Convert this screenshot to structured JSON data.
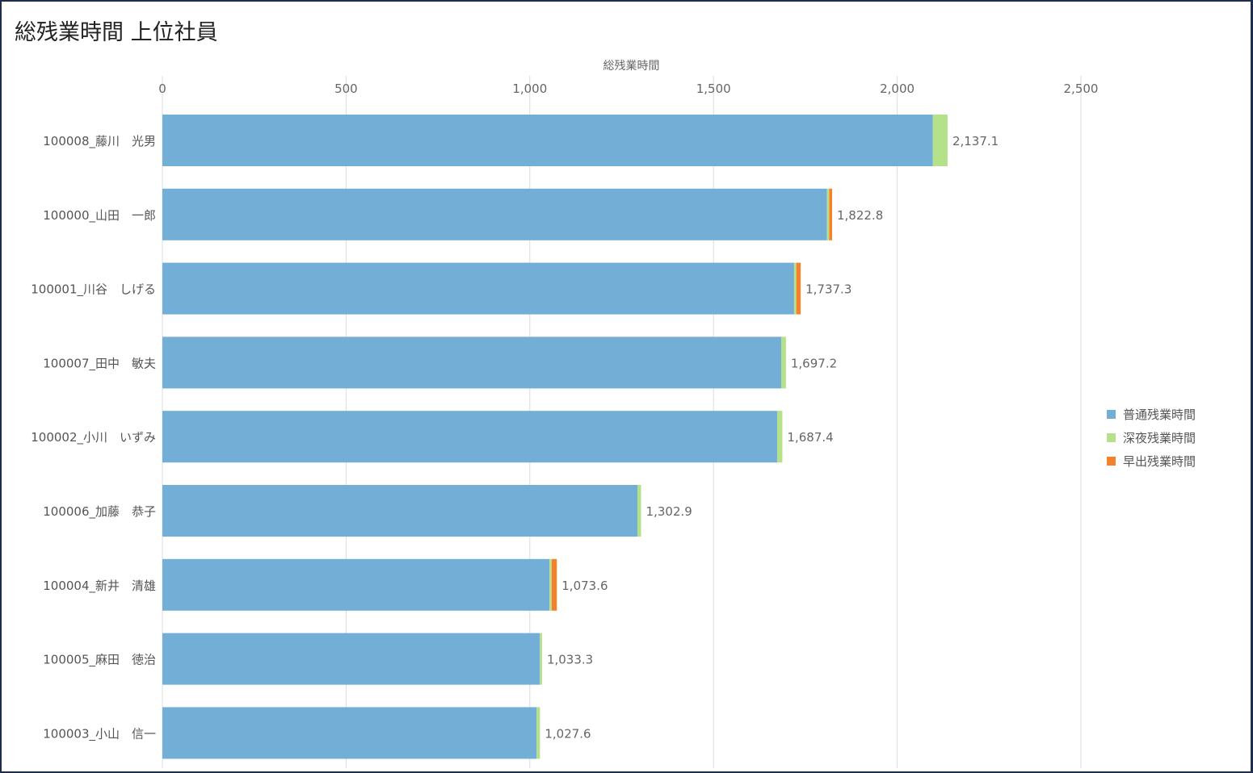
{
  "title": "総残業時間 上位社員",
  "chart_data": {
    "type": "bar",
    "orientation": "horizontal",
    "stacked": true,
    "title": "総残業時間 上位社員",
    "xlabel": "総残業時間",
    "ylabel": "",
    "xlim": [
      0,
      2500
    ],
    "x_ticks": [
      0,
      500,
      1000,
      1500,
      2000,
      2500
    ],
    "x_tick_labels": [
      "0",
      "500",
      "1,000",
      "1,500",
      "2,000",
      "2,500"
    ],
    "grid": true,
    "legend_position": "right",
    "categories": [
      "100008_藤川　光男",
      "100000_山田　一郎",
      "100001_川谷　しげる",
      "100007_田中　敏夫",
      "100002_小川　いずみ",
      "100006_加藤　恭子",
      "100004_新井　清雄",
      "100005_麻田　徳治",
      "100003_小山　信一"
    ],
    "series": [
      {
        "name": "普通残業時間",
        "color": "#72aed6",
        "values": [
          2097.1,
          1808.8,
          1719.3,
          1684.2,
          1673.4,
          1292.9,
          1053.6,
          1027.3,
          1018.6
        ]
      },
      {
        "name": "深夜残業時間",
        "color": "#b5e18b",
        "values": [
          40.0,
          6.0,
          6.0,
          13.0,
          14.0,
          10.0,
          6.0,
          6.0,
          9.0
        ]
      },
      {
        "name": "早出残業時間",
        "color": "#f5822a",
        "values": [
          0,
          8.0,
          12.0,
          0,
          0,
          0,
          14.0,
          0,
          0
        ]
      }
    ],
    "totals": [
      2137.1,
      1822.8,
      1737.3,
      1697.2,
      1687.4,
      1302.9,
      1073.6,
      1033.3,
      1027.6
    ],
    "total_labels": [
      "2,137.1",
      "1,822.8",
      "1,737.3",
      "1,697.2",
      "1,687.4",
      "1,302.9",
      "1,073.6",
      "1,033.3",
      "1,027.6"
    ]
  }
}
